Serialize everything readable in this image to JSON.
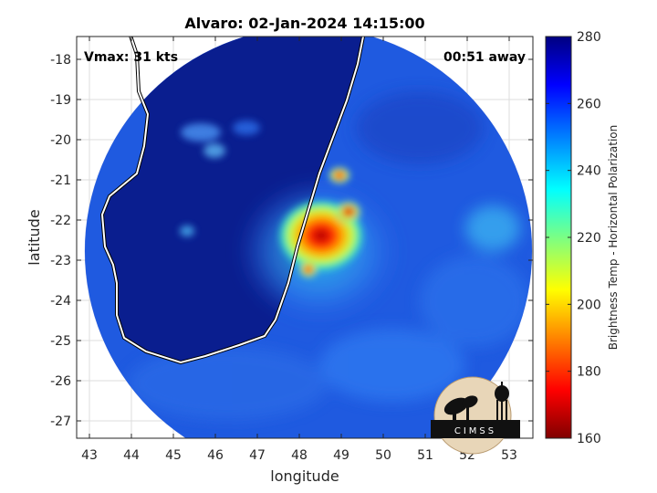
{
  "title": "Alvaro: 02-Jan-2024 14:15:00",
  "annotations": {
    "vmax": "Vmax: 31 kts",
    "time_away": "00:51 away"
  },
  "xlabel": "longitude",
  "ylabel": "latitude",
  "xticks": [
    "43",
    "44",
    "45",
    "46",
    "47",
    "48",
    "49",
    "50",
    "51",
    "52",
    "53"
  ],
  "yticks": [
    "-18",
    "-19",
    "-20",
    "-21",
    "-22",
    "-23",
    "-24",
    "-25",
    "-26",
    "-27"
  ],
  "colorbar": {
    "label": "Brightness Temp - Horizontal Polarization",
    "ticks": [
      "280",
      "260",
      "240",
      "220",
      "200",
      "180",
      "160"
    ],
    "colormap": "jet"
  },
  "logo": {
    "text": "CIMSS"
  },
  "colors": {
    "clear_sky": "#0a1e8f",
    "background_ocean": "#1f5ae0",
    "core_max": "#a00000",
    "coastline": "#ffffff"
  }
}
